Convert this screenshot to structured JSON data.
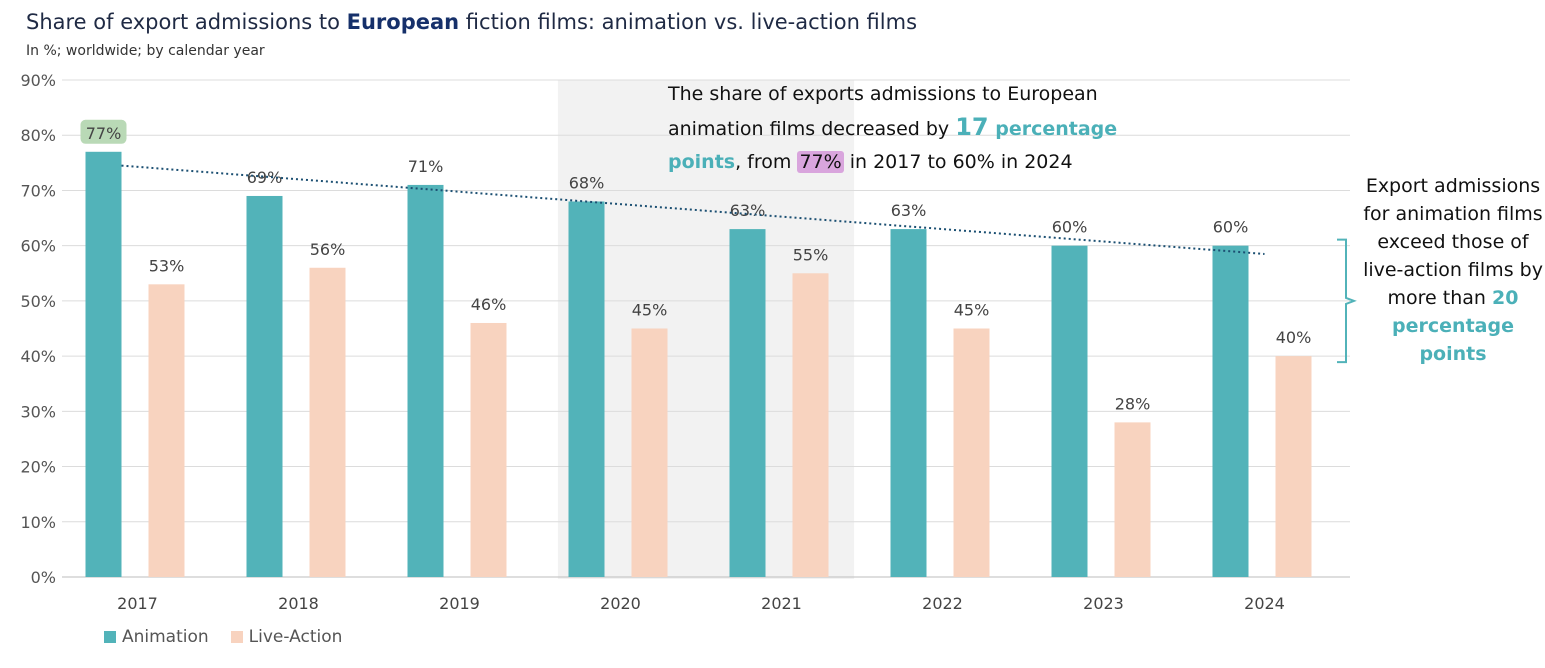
{
  "title_prefix": "Share of export admissions to ",
  "title_highlight": "European",
  "title_suffix": " fiction films: animation vs. live-action films",
  "subtitle": "In %; worldwide; by calendar year",
  "colors": {
    "animation": "#52b3b9",
    "live_action": "#f8d3bf",
    "trend": "#1b4f72",
    "shade": "#f2f2f2",
    "first_label_bg": "#b9d9b6",
    "grid": "#dcdcdc"
  },
  "annotation_main": {
    "line1": "The share of exports admissions to European",
    "part_a": "animation films decreased by ",
    "num": "17",
    "part_b": " percentage",
    "part_c": "points",
    "part_d": ", from ",
    "highlight": "77%",
    "part_e": " in 2017 to 60% in 2024"
  },
  "annotation_side": {
    "text": "Export admissions for animation films exceed those of live-action films by more than ",
    "num": "20",
    "unit": "percentage points"
  },
  "chart_data": {
    "type": "bar",
    "categories": [
      "2017",
      "2018",
      "2019",
      "2020",
      "2021",
      "2022",
      "2023",
      "2024"
    ],
    "series": [
      {
        "name": "Animation",
        "values": [
          77,
          69,
          71,
          68,
          63,
          63,
          60,
          60
        ],
        "labels": [
          "77%",
          "69%",
          "71%",
          "68%",
          "63%",
          "63%",
          "60%",
          "60%"
        ]
      },
      {
        "name": "Live-Action",
        "values": [
          53,
          56,
          46,
          45,
          55,
          45,
          28,
          40
        ],
        "labels": [
          "53%",
          "56%",
          "46%",
          "45%",
          "55%",
          "45%",
          "28%",
          "40%"
        ]
      }
    ],
    "ylim": [
      0,
      90
    ],
    "yticks": [
      "0%",
      "10%",
      "20%",
      "30%",
      "40%",
      "50%",
      "60%",
      "70%",
      "80%",
      "90%"
    ],
    "trendline": {
      "series": "Animation",
      "from": 74.5,
      "to": 58.5,
      "style": "dotted"
    },
    "highlighted_categories": [
      "2020",
      "2021"
    ],
    "grid": true,
    "legend": "bottom-left"
  }
}
